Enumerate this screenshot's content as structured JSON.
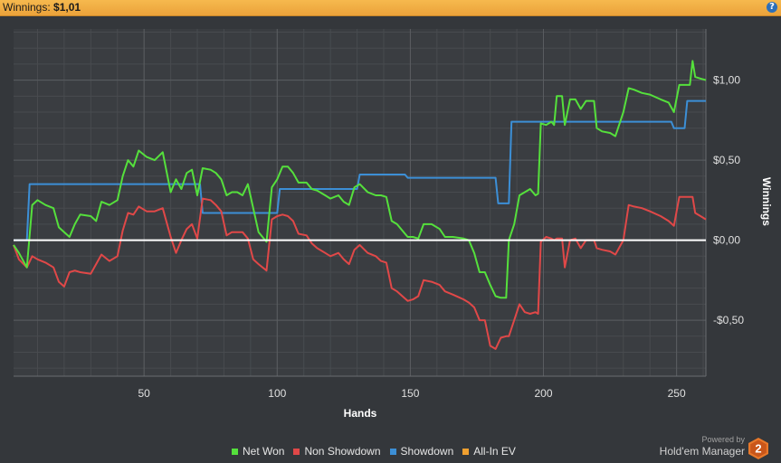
{
  "header": {
    "label": "Winnings:",
    "value": "$1,01"
  },
  "help_icon": "question-icon",
  "legend": [
    {
      "label": "Net Won",
      "color": "#55e03c"
    },
    {
      "label": "Non Showdown",
      "color": "#e04848"
    },
    {
      "label": "Showdown",
      "color": "#3c8fd6"
    },
    {
      "label": "All-In EV",
      "color": "#f0a030"
    }
  ],
  "branding": {
    "powered": "Powered by",
    "name": "Hold'em Manager",
    "badge": "2"
  },
  "chart_data": {
    "type": "line",
    "xlabel": "Hands",
    "ylabel": "Winnings",
    "xlim": [
      1,
      261
    ],
    "ylim": [
      -0.85,
      1.32
    ],
    "x_ticks": [
      50,
      100,
      150,
      200,
      250
    ],
    "y_ticks": [
      {
        "value": 1.0,
        "label": "$1,00"
      },
      {
        "value": 0.5,
        "label": "$0,50"
      },
      {
        "value": 0.0,
        "label": "$0,00"
      },
      {
        "value": -0.5,
        "label": "-$0,50"
      }
    ],
    "grid": true,
    "legend_position": "bottom",
    "series": [
      {
        "name": "Net Won",
        "color": "#55e03c",
        "points": [
          [
            1,
            -0.03
          ],
          [
            3,
            -0.08
          ],
          [
            6,
            -0.17
          ],
          [
            8,
            0.22
          ],
          [
            10,
            0.25
          ],
          [
            13,
            0.22
          ],
          [
            16,
            0.2
          ],
          [
            18,
            0.08
          ],
          [
            20,
            0.05
          ],
          [
            22,
            0.02
          ],
          [
            24,
            0.1
          ],
          [
            26,
            0.16
          ],
          [
            30,
            0.15
          ],
          [
            32,
            0.12
          ],
          [
            34,
            0.24
          ],
          [
            37,
            0.22
          ],
          [
            40,
            0.25
          ],
          [
            42,
            0.4
          ],
          [
            44,
            0.5
          ],
          [
            46,
            0.46
          ],
          [
            48,
            0.56
          ],
          [
            51,
            0.52
          ],
          [
            54,
            0.5
          ],
          [
            57,
            0.55
          ],
          [
            60,
            0.3
          ],
          [
            62,
            0.38
          ],
          [
            64,
            0.32
          ],
          [
            66,
            0.42
          ],
          [
            68,
            0.44
          ],
          [
            70,
            0.28
          ],
          [
            72,
            0.45
          ],
          [
            75,
            0.44
          ],
          [
            77,
            0.42
          ],
          [
            79,
            0.38
          ],
          [
            81,
            0.28
          ],
          [
            83,
            0.3
          ],
          [
            85,
            0.3
          ],
          [
            87,
            0.28
          ],
          [
            89,
            0.35
          ],
          [
            91,
            0.2
          ],
          [
            93,
            0.05
          ],
          [
            96,
            -0.01
          ],
          [
            98,
            0.33
          ],
          [
            100,
            0.38
          ],
          [
            102,
            0.46
          ],
          [
            104,
            0.46
          ],
          [
            106,
            0.42
          ],
          [
            108,
            0.36
          ],
          [
            111,
            0.36
          ],
          [
            113,
            0.32
          ],
          [
            115,
            0.31
          ],
          [
            118,
            0.28
          ],
          [
            120,
            0.26
          ],
          [
            123,
            0.28
          ],
          [
            125,
            0.24
          ],
          [
            127,
            0.22
          ],
          [
            129,
            0.33
          ],
          [
            131,
            0.35
          ],
          [
            134,
            0.3
          ],
          [
            137,
            0.28
          ],
          [
            139,
            0.28
          ],
          [
            141,
            0.27
          ],
          [
            143,
            0.12
          ],
          [
            145,
            0.1
          ],
          [
            147,
            0.06
          ],
          [
            149,
            0.02
          ],
          [
            151,
            0.02
          ],
          [
            153,
            0.01
          ],
          [
            155,
            0.1
          ],
          [
            158,
            0.1
          ],
          [
            161,
            0.07
          ],
          [
            163,
            0.02
          ],
          [
            166,
            0.02
          ],
          [
            170,
            0.01
          ],
          [
            172,
            0.0
          ],
          [
            174,
            -0.08
          ],
          [
            176,
            -0.2
          ],
          [
            178,
            -0.2
          ],
          [
            180,
            -0.28
          ],
          [
            182,
            -0.35
          ],
          [
            184,
            -0.36
          ],
          [
            186,
            -0.36
          ],
          [
            187,
            0.0
          ],
          [
            189,
            0.1
          ],
          [
            191,
            0.28
          ],
          [
            193,
            0.3
          ],
          [
            195,
            0.32
          ],
          [
            197,
            0.28
          ],
          [
            198,
            0.29
          ],
          [
            199,
            0.73
          ],
          [
            201,
            0.72
          ],
          [
            203,
            0.74
          ],
          [
            204,
            0.72
          ],
          [
            205,
            0.9
          ],
          [
            207,
            0.9
          ],
          [
            208,
            0.72
          ],
          [
            210,
            0.88
          ],
          [
            212,
            0.88
          ],
          [
            214,
            0.82
          ],
          [
            216,
            0.87
          ],
          [
            219,
            0.87
          ],
          [
            220,
            0.7
          ],
          [
            222,
            0.68
          ],
          [
            225,
            0.67
          ],
          [
            227,
            0.65
          ],
          [
            230,
            0.8
          ],
          [
            232,
            0.95
          ],
          [
            234,
            0.94
          ],
          [
            237,
            0.92
          ],
          [
            240,
            0.91
          ],
          [
            244,
            0.88
          ],
          [
            247,
            0.86
          ],
          [
            249,
            0.8
          ],
          [
            251,
            0.97
          ],
          [
            255,
            0.97
          ],
          [
            256,
            1.12
          ],
          [
            257,
            1.02
          ],
          [
            259,
            1.01
          ],
          [
            261,
            1.0
          ]
        ]
      },
      {
        "name": "Non Showdown",
        "color": "#e04848",
        "points": [
          [
            1,
            -0.03
          ],
          [
            3,
            -0.12
          ],
          [
            6,
            -0.17
          ],
          [
            8,
            -0.1
          ],
          [
            10,
            -0.12
          ],
          [
            13,
            -0.14
          ],
          [
            16,
            -0.17
          ],
          [
            18,
            -0.26
          ],
          [
            20,
            -0.29
          ],
          [
            22,
            -0.2
          ],
          [
            24,
            -0.19
          ],
          [
            26,
            -0.2
          ],
          [
            30,
            -0.21
          ],
          [
            32,
            -0.15
          ],
          [
            34,
            -0.09
          ],
          [
            37,
            -0.13
          ],
          [
            40,
            -0.1
          ],
          [
            42,
            0.06
          ],
          [
            44,
            0.17
          ],
          [
            46,
            0.16
          ],
          [
            48,
            0.21
          ],
          [
            51,
            0.18
          ],
          [
            54,
            0.18
          ],
          [
            57,
            0.2
          ],
          [
            60,
            0.02
          ],
          [
            62,
            -0.08
          ],
          [
            64,
            0.0
          ],
          [
            66,
            0.07
          ],
          [
            68,
            0.1
          ],
          [
            70,
            0.01
          ],
          [
            72,
            0.26
          ],
          [
            75,
            0.25
          ],
          [
            77,
            0.22
          ],
          [
            79,
            0.18
          ],
          [
            81,
            0.03
          ],
          [
            83,
            0.05
          ],
          [
            85,
            0.05
          ],
          [
            87,
            0.05
          ],
          [
            89,
            0.01
          ],
          [
            91,
            -0.12
          ],
          [
            93,
            -0.15
          ],
          [
            96,
            -0.19
          ],
          [
            98,
            0.13
          ],
          [
            100,
            0.15
          ],
          [
            102,
            0.16
          ],
          [
            104,
            0.15
          ],
          [
            106,
            0.12
          ],
          [
            108,
            0.04
          ],
          [
            111,
            0.03
          ],
          [
            113,
            -0.02
          ],
          [
            115,
            -0.05
          ],
          [
            118,
            -0.08
          ],
          [
            120,
            -0.1
          ],
          [
            123,
            -0.08
          ],
          [
            125,
            -0.12
          ],
          [
            127,
            -0.15
          ],
          [
            129,
            -0.06
          ],
          [
            131,
            -0.03
          ],
          [
            134,
            -0.08
          ],
          [
            137,
            -0.1
          ],
          [
            139,
            -0.13
          ],
          [
            141,
            -0.14
          ],
          [
            143,
            -0.3
          ],
          [
            145,
            -0.32
          ],
          [
            147,
            -0.35
          ],
          [
            149,
            -0.38
          ],
          [
            151,
            -0.37
          ],
          [
            153,
            -0.35
          ],
          [
            155,
            -0.25
          ],
          [
            158,
            -0.26
          ],
          [
            161,
            -0.28
          ],
          [
            163,
            -0.32
          ],
          [
            166,
            -0.34
          ],
          [
            170,
            -0.37
          ],
          [
            172,
            -0.39
          ],
          [
            174,
            -0.42
          ],
          [
            176,
            -0.5
          ],
          [
            178,
            -0.5
          ],
          [
            180,
            -0.66
          ],
          [
            182,
            -0.68
          ],
          [
            184,
            -0.61
          ],
          [
            186,
            -0.6
          ],
          [
            187,
            -0.6
          ],
          [
            189,
            -0.5
          ],
          [
            191,
            -0.4
          ],
          [
            193,
            -0.45
          ],
          [
            195,
            -0.46
          ],
          [
            197,
            -0.45
          ],
          [
            198,
            -0.46
          ],
          [
            199,
            -0.01
          ],
          [
            201,
            0.02
          ],
          [
            203,
            0.01
          ],
          [
            204,
            0.0
          ],
          [
            205,
            0.01
          ],
          [
            207,
            0.01
          ],
          [
            208,
            -0.17
          ],
          [
            210,
            0.0
          ],
          [
            212,
            0.01
          ],
          [
            214,
            -0.05
          ],
          [
            216,
            0.0
          ],
          [
            219,
            0.0
          ],
          [
            220,
            -0.05
          ],
          [
            222,
            -0.06
          ],
          [
            225,
            -0.07
          ],
          [
            227,
            -0.09
          ],
          [
            230,
            0.0
          ],
          [
            232,
            0.22
          ],
          [
            234,
            0.21
          ],
          [
            237,
            0.2
          ],
          [
            240,
            0.18
          ],
          [
            244,
            0.15
          ],
          [
            247,
            0.12
          ],
          [
            249,
            0.09
          ],
          [
            251,
            0.27
          ],
          [
            255,
            0.27
          ],
          [
            256,
            0.27
          ],
          [
            257,
            0.17
          ],
          [
            259,
            0.15
          ],
          [
            261,
            0.13
          ]
        ]
      },
      {
        "name": "Showdown",
        "color": "#3c8fd6",
        "points": [
          [
            1,
            0.0
          ],
          [
            6,
            0.0
          ],
          [
            7,
            0.35
          ],
          [
            63,
            0.35
          ],
          [
            64,
            0.35
          ],
          [
            71,
            0.35
          ],
          [
            72,
            0.17
          ],
          [
            100,
            0.17
          ],
          [
            101,
            0.32
          ],
          [
            130,
            0.32
          ],
          [
            131,
            0.41
          ],
          [
            148,
            0.41
          ],
          [
            149,
            0.39
          ],
          [
            182,
            0.39
          ],
          [
            183,
            0.23
          ],
          [
            187,
            0.23
          ],
          [
            188,
            0.74
          ],
          [
            248,
            0.74
          ],
          [
            249,
            0.7
          ],
          [
            253,
            0.7
          ],
          [
            254,
            0.87
          ],
          [
            261,
            0.87
          ]
        ]
      }
    ]
  }
}
